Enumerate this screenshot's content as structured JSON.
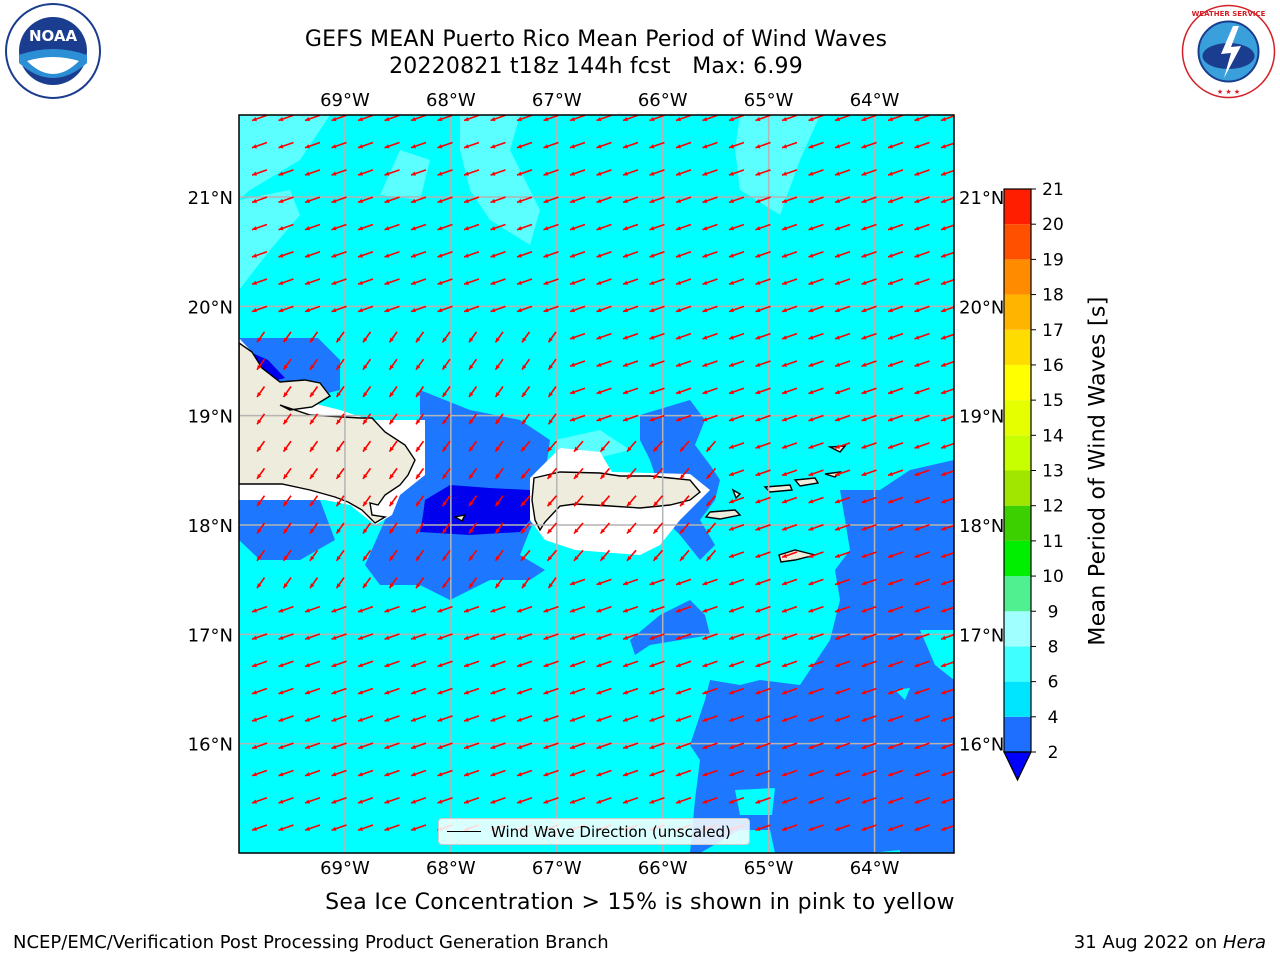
{
  "header": {
    "title_line1": "GEFS MEAN Puerto Rico Mean Period of Wind Waves",
    "title_line2": "20220821 t18z 144h fcst   Max: 6.99"
  },
  "logos": {
    "noaa": {
      "text": "NOAA",
      "ring_text": "NATIONAL OCEANIC AND ATMOSPHERIC ADMINISTRATION · U.S. DEPARTMENT OF COMMERCE"
    },
    "nws": {
      "ring_text": "NATIONAL WEATHER SERVICE"
    }
  },
  "map": {
    "lon_labels": [
      "69°W",
      "68°W",
      "67°W",
      "66°W",
      "65°W",
      "64°W"
    ],
    "lat_labels": [
      "21°N",
      "20°N",
      "19°N",
      "18°N",
      "17°N",
      "16°N"
    ],
    "lon_range": [
      -70.0,
      -63.25
    ],
    "lat_range": [
      15.0,
      21.75
    ],
    "legend_label": "Wind Wave Direction (unscaled)",
    "arrow_color": "#ff0000",
    "land_color": "#eeecdc",
    "max_value": 6.99
  },
  "colorbar": {
    "title": "Mean Period of Wind Waves [s]",
    "ticks": [
      "2",
      "4",
      "6",
      "8",
      "9",
      "10",
      "11",
      "12",
      "13",
      "14",
      "15",
      "16",
      "17",
      "18",
      "19",
      "20",
      "21"
    ],
    "colors": [
      "#1e6eff",
      "#00e5ff",
      "#40ffff",
      "#a0ffff",
      "#50f090",
      "#00ee00",
      "#3cd000",
      "#a0e600",
      "#c8ff00",
      "#e6ff00",
      "#ffff00",
      "#ffdc00",
      "#ffb400",
      "#ff8c00",
      "#ff5000",
      "#ff1e00"
    ],
    "extend_color": "#0000ff"
  },
  "note": "Sea Ice Concentration > 15% is shown in pink to yellow",
  "footer": {
    "left": "NCEP/EMC/Verification Post Processing Product Generation Branch",
    "right_prefix": "31 Aug 2022 on ",
    "right_italic": "Hera"
  }
}
